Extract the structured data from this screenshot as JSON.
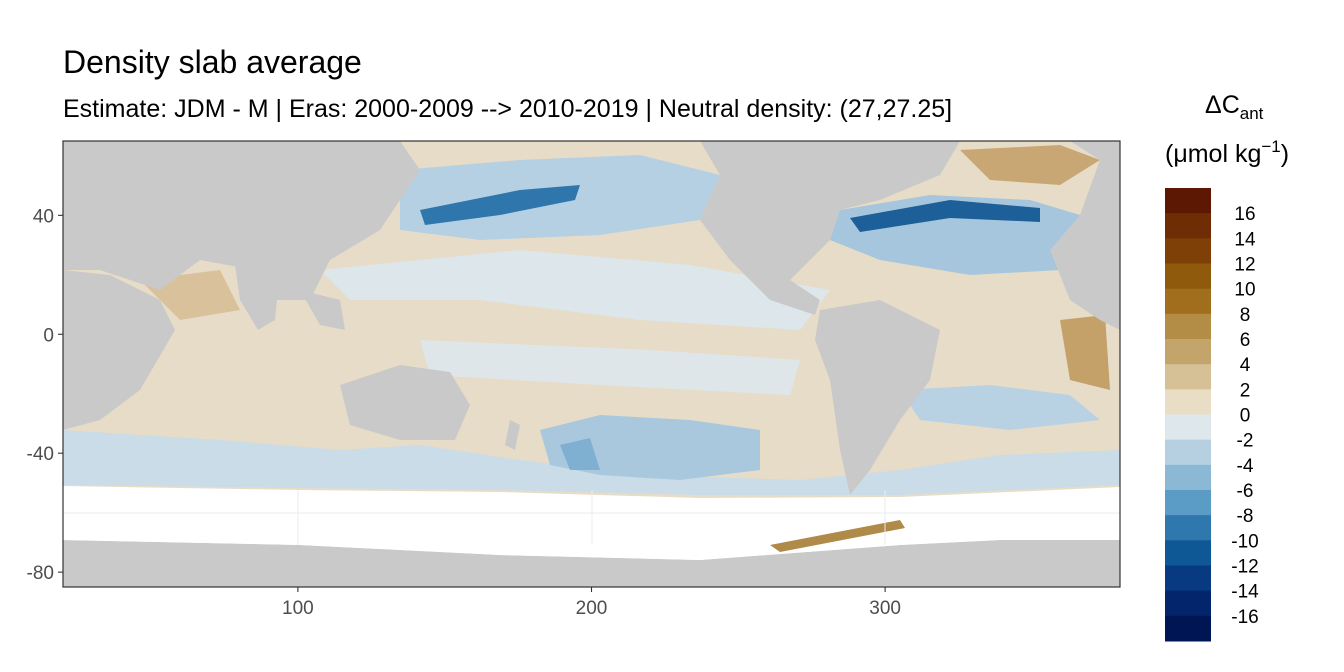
{
  "chart_data": {
    "type": "heatmap",
    "title": "Density slab average",
    "subtitle": "Estimate: JDM - M | Eras: 2000-2009 --> 2010-2019 | Neutral density: (27,27.25]",
    "xlabel": "",
    "ylabel": "",
    "xlim": [
      20,
      380
    ],
    "ylim": [
      -85,
      65
    ],
    "x_ticks": [
      100,
      200,
      300
    ],
    "y_ticks": [
      40,
      0,
      -40,
      -80
    ],
    "grid": true,
    "legend_position": "right",
    "legend": {
      "title_main": "ΔC",
      "title_sub": "ant",
      "unit_prefix": "(μmol kg",
      "unit_exp": "−1",
      "unit_suffix": ")",
      "labels": [
        "16",
        "14",
        "12",
        "10",
        "8",
        "6",
        "4",
        "2",
        "0",
        "-2",
        "-4",
        "-6",
        "-8",
        "-10",
        "-12",
        "-14",
        "-16"
      ],
      "colors": [
        "#5c1803",
        "#6e2d05",
        "#7f4007",
        "#8f5a0c",
        "#a06e1d",
        "#b38c45",
        "#c3a46a",
        "#d6c196",
        "#e9ddc6",
        "#dde7ec",
        "#b6d0e1",
        "#8bb9d5",
        "#5b9cc6",
        "#2f78ad",
        "#0e5895",
        "#073a80",
        "#03256b",
        "#001553"
      ]
    },
    "colors": {
      "land": "#c9c9c9",
      "no_data": "#ffffff",
      "panel_border": "#333333"
    }
  }
}
